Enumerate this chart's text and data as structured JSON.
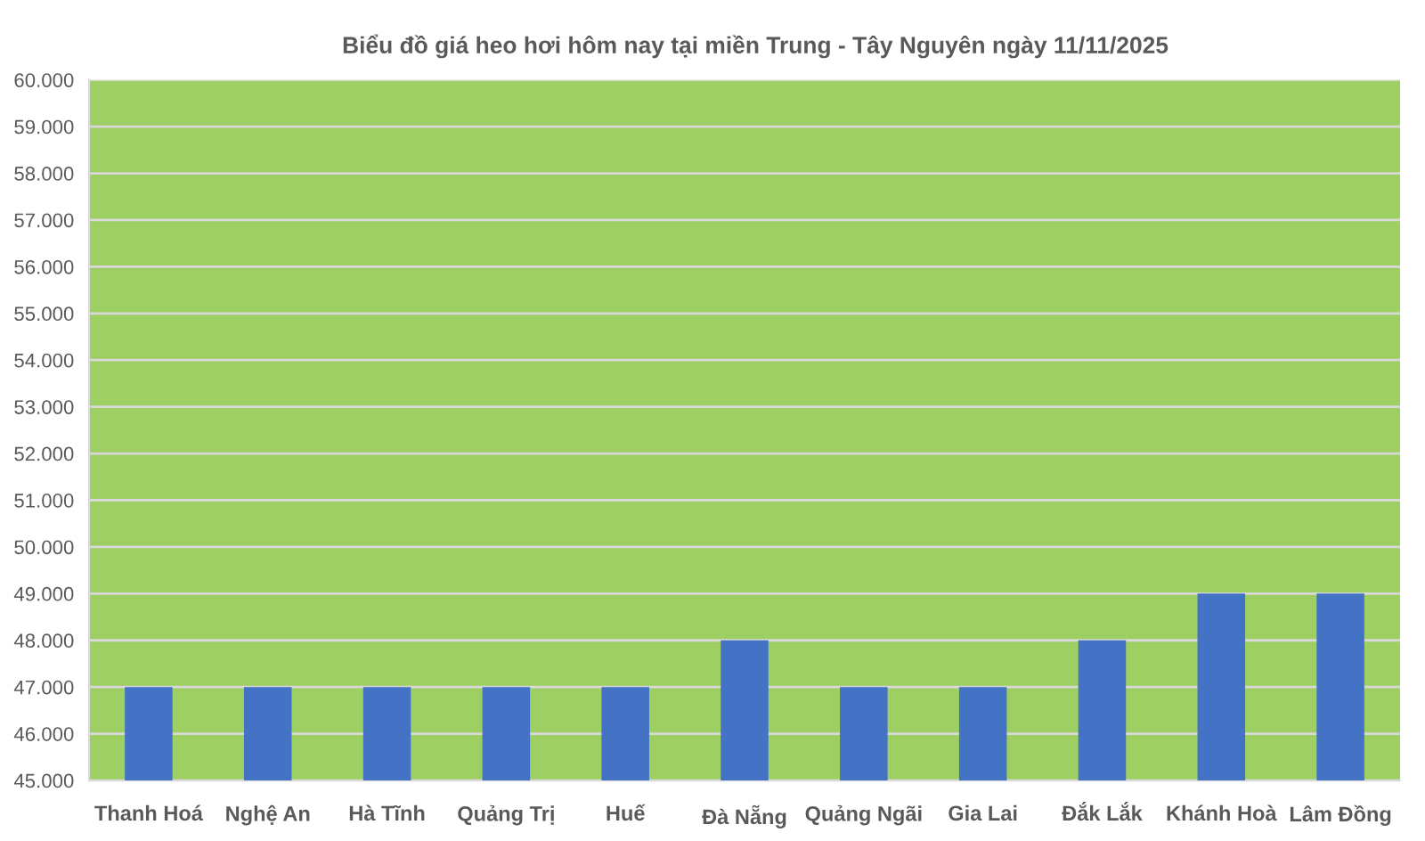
{
  "chart_data": {
    "type": "bar",
    "title": "Biểu đồ giá heo hơi hôm nay tại miền Trung - Tây Nguyên ngày 11/11/2025",
    "categories": [
      "Thanh Hoá",
      "Nghệ An",
      "Hà Tĩnh",
      "Quảng Trị",
      "Huế",
      "Đà Nẵng",
      "Quảng Ngãi",
      "Gia Lai",
      "Đắk Lắk",
      "Khánh Hoà",
      "Lâm Đồng"
    ],
    "values": [
      47000,
      47000,
      47000,
      47000,
      47000,
      48000,
      47000,
      47000,
      48000,
      49000,
      49000
    ],
    "color": "#4472c4",
    "ylim": [
      45000,
      60000
    ],
    "yticks": [
      {
        "value": 45000,
        "label": "45.000"
      },
      {
        "value": 46000,
        "label": "46.000"
      },
      {
        "value": 47000,
        "label": "47.000"
      },
      {
        "value": 48000,
        "label": "48.000"
      },
      {
        "value": 49000,
        "label": "49.000"
      },
      {
        "value": 50000,
        "label": "50.000"
      },
      {
        "value": 51000,
        "label": "51.000"
      },
      {
        "value": 52000,
        "label": "52.000"
      },
      {
        "value": 53000,
        "label": "53.000"
      },
      {
        "value": 54000,
        "label": "54.000"
      },
      {
        "value": 55000,
        "label": "55.000"
      },
      {
        "value": 56000,
        "label": "56.000"
      },
      {
        "value": 57000,
        "label": "57.000"
      },
      {
        "value": 58000,
        "label": "58.000"
      },
      {
        "value": 59000,
        "label": "59.000"
      },
      {
        "value": 60000,
        "label": "60.000"
      }
    ],
    "grid": "y",
    "legend": false
  }
}
